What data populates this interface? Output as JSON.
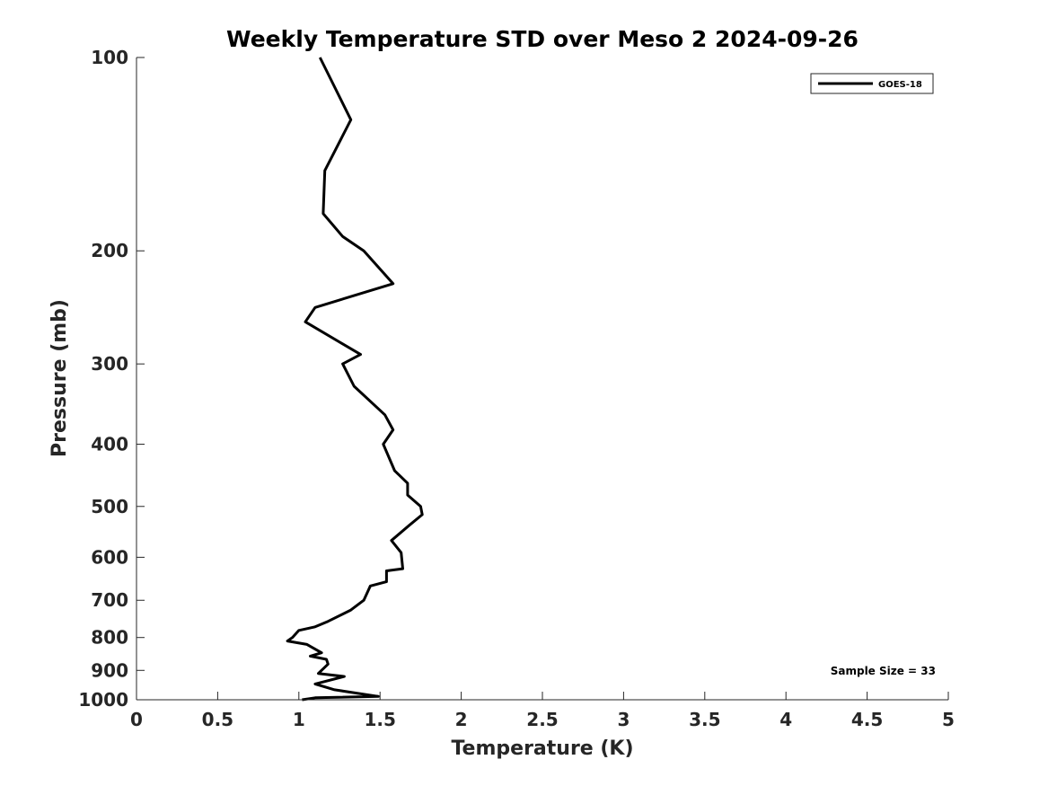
{
  "chart_data": {
    "type": "line",
    "title": "Weekly Temperature STD over Meso 2 2024-09-26",
    "xlabel": "Temperature (K)",
    "ylabel": "Pressure (mb)",
    "xlim": [
      0,
      5
    ],
    "ylim": [
      100,
      1000
    ],
    "y_scale": "log",
    "y_reversed": true,
    "grid": false,
    "legend_position": "top-right",
    "x_ticks": [
      "0",
      "0.5",
      "1",
      "1.5",
      "2",
      "2.5",
      "3",
      "3.5",
      "4",
      "4.5",
      "5"
    ],
    "y_ticks": [
      "100",
      "200",
      "300",
      "400",
      "500",
      "600",
      "700",
      "800",
      "900",
      "1000"
    ],
    "annotation": "Sample Size = 33",
    "series": [
      {
        "name": "GOES-18",
        "color": "#000000",
        "points": [
          [
            1.13,
            100
          ],
          [
            1.32,
            125
          ],
          [
            1.16,
            150
          ],
          [
            1.15,
            175
          ],
          [
            1.27,
            190
          ],
          [
            1.4,
            200
          ],
          [
            1.58,
            225
          ],
          [
            1.1,
            245
          ],
          [
            1.04,
            258
          ],
          [
            1.38,
            290
          ],
          [
            1.27,
            300
          ],
          [
            1.34,
            325
          ],
          [
            1.53,
            360
          ],
          [
            1.58,
            380
          ],
          [
            1.52,
            400
          ],
          [
            1.59,
            440
          ],
          [
            1.67,
            460
          ],
          [
            1.67,
            480
          ],
          [
            1.75,
            500
          ],
          [
            1.76,
            515
          ],
          [
            1.68,
            535
          ],
          [
            1.57,
            565
          ],
          [
            1.63,
            590
          ],
          [
            1.64,
            625
          ],
          [
            1.54,
            630
          ],
          [
            1.54,
            655
          ],
          [
            1.44,
            665
          ],
          [
            1.4,
            700
          ],
          [
            1.32,
            725
          ],
          [
            1.18,
            755
          ],
          [
            1.1,
            770
          ],
          [
            1.0,
            780
          ],
          [
            0.96,
            800
          ],
          [
            0.93,
            810
          ],
          [
            1.05,
            820
          ],
          [
            1.14,
            845
          ],
          [
            1.07,
            855
          ],
          [
            1.17,
            865
          ],
          [
            1.18,
            880
          ],
          [
            1.12,
            910
          ],
          [
            1.28,
            920
          ],
          [
            1.1,
            945
          ],
          [
            1.22,
            965
          ],
          [
            1.49,
            988
          ],
          [
            1.1,
            993
          ],
          [
            1.02,
            1000
          ]
        ]
      }
    ]
  }
}
